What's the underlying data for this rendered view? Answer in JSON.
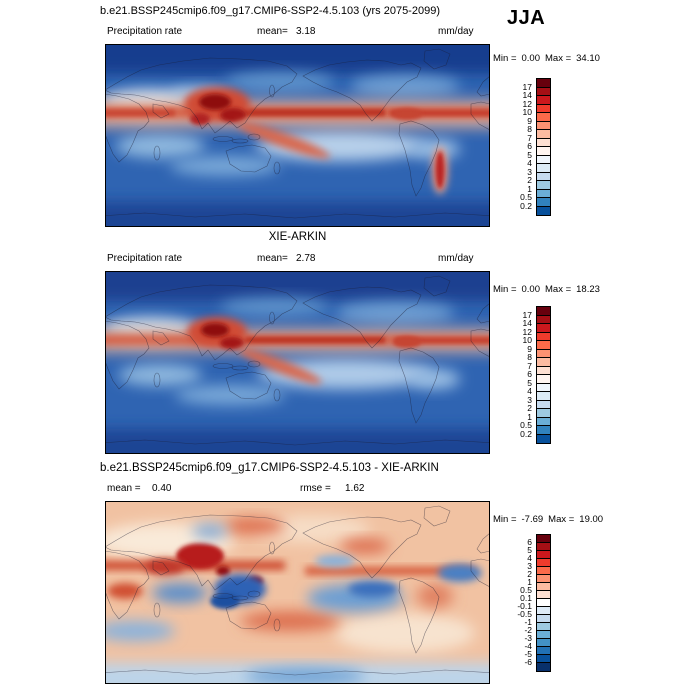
{
  "season_label": "JJA",
  "panel1": {
    "title": "b.e21.BSSP245cmip6.f09_g17.CMIP6-SSP2-4.5.103 (yrs 2075-2099)",
    "variable_label": "Precipitation rate",
    "mean_label": "mean=",
    "mean_value": "3.18",
    "units_label": "mm/day",
    "min_label": "Min =",
    "min_value": "0.00",
    "max_label": "Max =",
    "max_value": "34.10"
  },
  "panel2": {
    "title": "XIE-ARKIN",
    "variable_label": "Precipitation rate",
    "mean_label": "mean=",
    "mean_value": "2.78",
    "units_label": "mm/day",
    "min_label": "Min =",
    "min_value": "0.00",
    "max_label": "Max =",
    "max_value": "18.23"
  },
  "panel3": {
    "title": "b.e21.BSSP245cmip6.f09_g17.CMIP6-SSP2-4.5.103 - XIE-ARKIN",
    "mean_label": "mean =",
    "mean_value": "0.40",
    "rmse_label": "rmse =",
    "rmse_value": "1.62",
    "min_label": "Min =",
    "min_value": "-7.69",
    "max_label": "Max =",
    "max_value": "19.00"
  },
  "colorbar_precip": {
    "ticks": [
      "17",
      "14",
      "12",
      "10",
      "9",
      "8",
      "7",
      "6",
      "5",
      "4",
      "3",
      "2",
      "1",
      "0.5",
      "0.2"
    ],
    "colors": [
      "#67000d",
      "#a50f15",
      "#cb181d",
      "#ef3b2c",
      "#fb6a4a",
      "#fc9272",
      "#fcbba1",
      "#fee0d2",
      "#fff5f0",
      "#f0f6fc",
      "#dcebf6",
      "#c6dbef",
      "#9ecae1",
      "#6baed6",
      "#3182bd",
      "#08519c"
    ]
  },
  "colorbar_diff": {
    "ticks": [
      "6",
      "5",
      "4",
      "3",
      "2",
      "1",
      "0.5",
      "0.1",
      "-0.1",
      "-0.5",
      "-1",
      "-2",
      "-3",
      "-4",
      "-5",
      "-6"
    ],
    "colors": [
      "#67000d",
      "#a50f15",
      "#cb181d",
      "#ef3b2c",
      "#fb6a4a",
      "#fc9272",
      "#fcbba1",
      "#fee0d2",
      "#ffffff",
      "#deebf7",
      "#c6dbef",
      "#9ecae1",
      "#6baed6",
      "#4292c6",
      "#2171b5",
      "#08519c",
      "#08306b"
    ]
  },
  "chart_data": [
    {
      "type": "heatmap",
      "subtype": "global-contour-map",
      "title": "b.e21.BSSP245cmip6.f09_g17.CMIP6-SSP2-4.5.103 (yrs 2075-2099)",
      "variable": "Precipitation rate",
      "season": "JJA",
      "units": "mm/day",
      "stats": {
        "mean": 3.18,
        "min": 0.0,
        "max": 34.1
      },
      "contour_levels": [
        0.2,
        0.5,
        1,
        2,
        3,
        4,
        5,
        6,
        7,
        8,
        9,
        10,
        12,
        14,
        17
      ],
      "colormap": "blue-low to red-high",
      "legend_position": "right",
      "projection": "global lat-lon, Pacific-centered",
      "features": [
        "intense red ITCZ band across tropical Pacific and Atlantic",
        "Asian summer monsoon maximum over South/Southeast Asia",
        "SPCZ diagonal band in southwest Pacific",
        "light-blue dry subtropical highs",
        "wet red streak along southern Chile"
      ]
    },
    {
      "type": "heatmap",
      "subtype": "global-contour-map",
      "title": "XIE-ARKIN",
      "variable": "Precipitation rate",
      "season": "JJA",
      "units": "mm/day",
      "stats": {
        "mean": 2.78,
        "min": 0.0,
        "max": 18.23
      },
      "contour_levels": [
        0.2,
        0.5,
        1,
        2,
        3,
        4,
        5,
        6,
        7,
        8,
        9,
        10,
        12,
        14,
        17
      ],
      "colormap": "blue-low to red-high",
      "legend_position": "right",
      "projection": "global lat-lon, Pacific-centered",
      "features": [
        "observed ITCZ band",
        "Asian monsoon maximum",
        "SPCZ diagonal band",
        "dry light subtropical regions"
      ]
    },
    {
      "type": "heatmap",
      "subtype": "global-difference-map",
      "title": "b.e21.BSSP245cmip6.f09_g17.CMIP6-SSP2-4.5.103 - XIE-ARKIN",
      "season": "JJA",
      "units": "mm/day",
      "stats": {
        "mean": 0.4,
        "rmse": 1.62,
        "min": -7.69,
        "max": 19.0
      },
      "contour_levels": [
        -6,
        -5,
        -4,
        -3,
        -2,
        -1,
        -0.5,
        -0.1,
        0.1,
        0.5,
        1,
        2,
        3,
        4,
        5,
        6
      ],
      "colormap": "blue-white-red diverging",
      "legend_position": "right",
      "projection": "global lat-lon, Pacific-centered",
      "features": [
        "widespread weak positive (red) bias",
        "negative (blue) bias over Maritime Continent, southeast Pacific, Indian Ocean and equatorial Atlantic",
        "light blue band along Southern Ocean"
      ]
    }
  ]
}
